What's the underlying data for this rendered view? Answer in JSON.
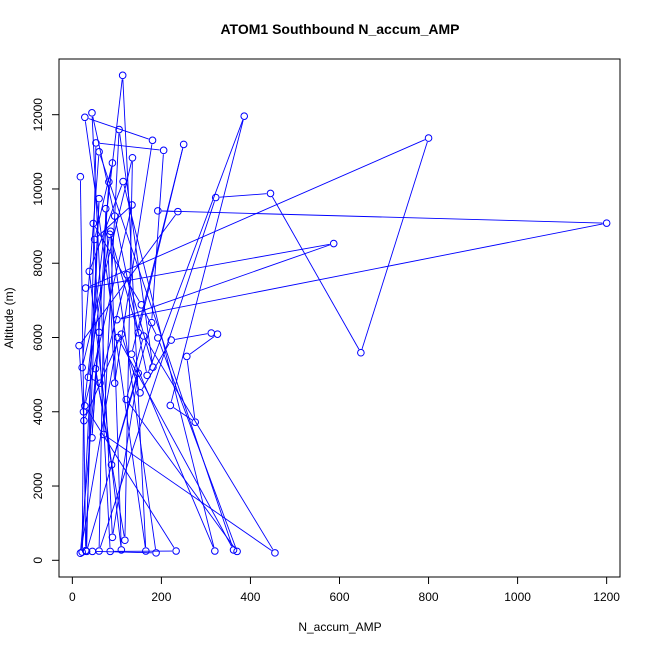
{
  "chart_data": {
    "type": "line",
    "title": "ATOM1 Southbound N_accum_AMP",
    "xlabel": "N_accum_AMP",
    "ylabel": "Altitude (m)",
    "xlim": [
      -30,
      1230
    ],
    "ylim": [
      -450,
      13500
    ],
    "x_ticks": [
      0,
      200,
      400,
      600,
      800,
      1000,
      1200
    ],
    "y_ticks": [
      0,
      2000,
      4000,
      6000,
      8000,
      10000,
      12000
    ],
    "grid": false,
    "color": "#0000ff",
    "marker": "open-circle",
    "series": [
      {
        "points": [
          [
            18,
            10330
          ],
          [
            30,
            260
          ],
          [
            60,
            9740
          ],
          [
            22,
            220
          ],
          [
            25,
            4000
          ],
          [
            113,
            13060
          ],
          [
            165,
            250
          ],
          [
            28,
            11930
          ],
          [
            180,
            11310
          ],
          [
            95,
            4770
          ],
          [
            75,
            9470
          ],
          [
            60,
            250
          ],
          [
            322,
            9770
          ],
          [
            445,
            9880
          ],
          [
            648,
            5590
          ],
          [
            800,
            11370
          ],
          [
            30,
            7330
          ],
          [
            587,
            8530
          ],
          [
            100,
            6480
          ],
          [
            1200,
            9080
          ],
          [
            192,
            9410
          ],
          [
            237,
            9390
          ],
          [
            15,
            5780
          ],
          [
            26,
            3760
          ],
          [
            110,
            6090
          ],
          [
            152,
            4510
          ],
          [
            222,
            5930
          ],
          [
            312,
            6120
          ],
          [
            326,
            6090
          ],
          [
            257,
            5490
          ],
          [
            276,
            3720
          ],
          [
            220,
            4170
          ],
          [
            386,
            11960
          ],
          [
            168,
            4980
          ],
          [
            95,
            9270
          ],
          [
            44,
            12050
          ],
          [
            90,
            620
          ],
          [
            148,
            5040
          ],
          [
            32,
            240
          ],
          [
            53,
            11240
          ],
          [
            205,
            11040
          ],
          [
            178,
            6400
          ],
          [
            88,
            2570
          ],
          [
            52,
            5160
          ],
          [
            118,
            540
          ],
          [
            135,
            10840
          ],
          [
            22,
            5190
          ],
          [
            60,
            11000
          ],
          [
            362,
            280
          ],
          [
            102,
            6000
          ],
          [
            18,
            190
          ],
          [
            60,
            6140
          ],
          [
            44,
            3300
          ],
          [
            82,
            10190
          ],
          [
            90,
            10700
          ],
          [
            50,
            8640
          ],
          [
            134,
            9570
          ],
          [
            28,
            4160
          ],
          [
            233,
            250
          ],
          [
            85,
            240
          ],
          [
            47,
            9070
          ],
          [
            155,
            6880
          ],
          [
            192,
            5990
          ],
          [
            370,
            240
          ],
          [
            121,
            4330
          ],
          [
            160,
            6040
          ],
          [
            455,
            200
          ],
          [
            70,
            3390
          ],
          [
            105,
            11600
          ],
          [
            181,
            5200
          ],
          [
            123,
            7690
          ],
          [
            62,
            4770
          ],
          [
            36,
            4930
          ],
          [
            84,
            8780
          ],
          [
            148,
            6130
          ],
          [
            250,
            11200
          ],
          [
            133,
            5550
          ],
          [
            320,
            250
          ],
          [
            114,
            10200
          ],
          [
            38,
            7780
          ],
          [
            110,
            280
          ],
          [
            86,
            8860
          ],
          [
            188,
            200
          ],
          [
            45,
            240
          ]
        ]
      }
    ]
  }
}
